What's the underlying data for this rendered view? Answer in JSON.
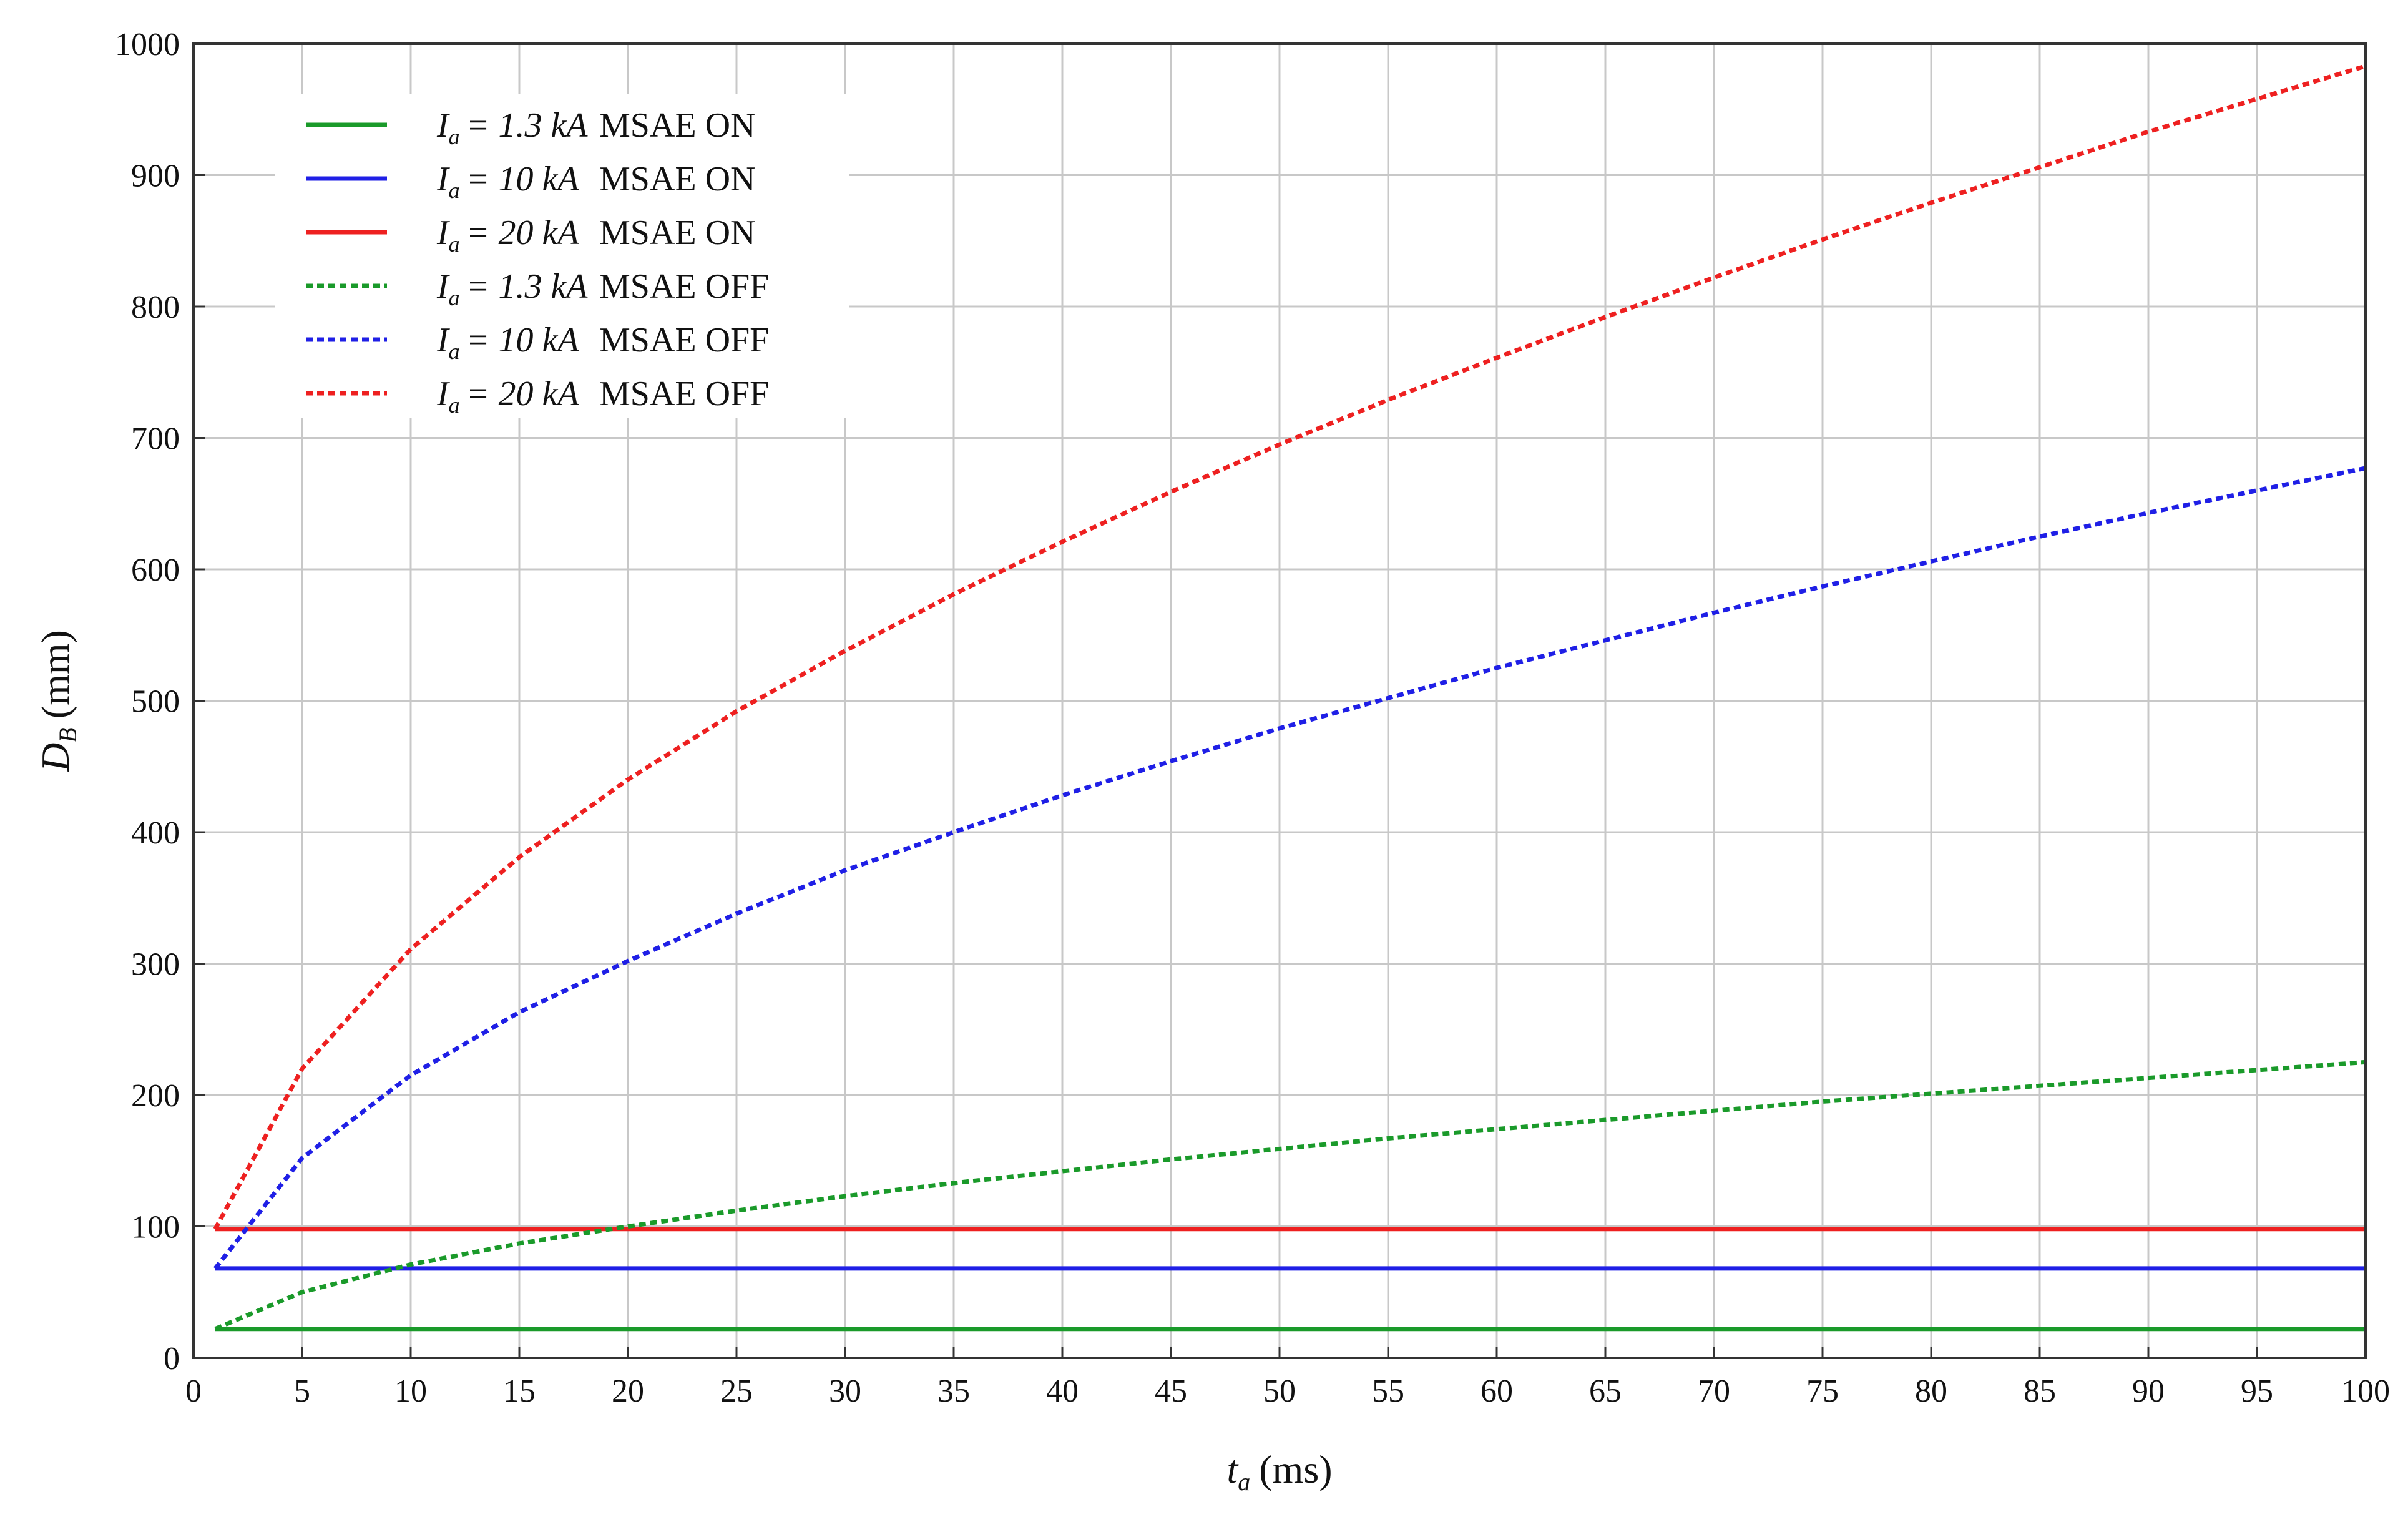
{
  "chart_data": {
    "type": "line",
    "title": "",
    "xlabel": {
      "symbol": "t",
      "subscript": "a",
      "unit": "(ms)"
    },
    "ylabel": {
      "symbol": "D",
      "subscript": "B",
      "unit": "(mm)"
    },
    "xlim": [
      0,
      100
    ],
    "ylim": [
      0,
      1000
    ],
    "xticks": [
      0,
      5,
      10,
      15,
      20,
      25,
      30,
      35,
      40,
      45,
      50,
      55,
      60,
      65,
      70,
      75,
      80,
      85,
      90,
      95,
      100
    ],
    "yticks": [
      0,
      100,
      200,
      300,
      400,
      500,
      600,
      700,
      800,
      900,
      1000
    ],
    "grid": true,
    "legend_position": "top-left",
    "series": [
      {
        "name": "Ia = 1.3 kA MSAE ON",
        "label": {
          "current": "= 1.3 kA",
          "mode": "MSAE ON"
        },
        "color": "#1a9a2a",
        "style": "solid",
        "x": [
          1,
          100
        ],
        "y": [
          22,
          22
        ]
      },
      {
        "name": "Ia = 10 kA MSAE ON",
        "label": {
          "current": "= 10 kA",
          "mode": "MSAE ON"
        },
        "color": "#1f1fe6",
        "style": "solid",
        "x": [
          1,
          100
        ],
        "y": [
          68,
          68
        ]
      },
      {
        "name": "Ia = 20 kA MSAE ON",
        "label": {
          "current": "= 20 kA",
          "mode": "MSAE ON"
        },
        "color": "#ee2020",
        "style": "solid",
        "x": [
          1,
          100
        ],
        "y": [
          98,
          98
        ]
      },
      {
        "name": "Ia = 1.3 kA MSAE OFF",
        "label": {
          "current": "= 1.3 kA",
          "mode": "MSAE OFF"
        },
        "color": "#1a9a2a",
        "style": "dotted",
        "x": [
          1,
          5,
          10,
          15,
          20,
          25,
          30,
          35,
          40,
          45,
          50,
          55,
          60,
          65,
          70,
          75,
          80,
          85,
          90,
          95,
          100
        ],
        "y": [
          22,
          50,
          71,
          87,
          100,
          112,
          123,
          133,
          142,
          151,
          159,
          167,
          174,
          181,
          188,
          195,
          201,
          207,
          213,
          219,
          225
        ]
      },
      {
        "name": "Ia = 10 kA MSAE OFF",
        "label": {
          "current": "= 10 kA",
          "mode": "MSAE OFF"
        },
        "color": "#1f1fe6",
        "style": "dotted",
        "x": [
          1,
          5,
          10,
          15,
          20,
          25,
          30,
          35,
          40,
          45,
          50,
          55,
          60,
          65,
          70,
          75,
          80,
          85,
          90,
          95,
          100
        ],
        "y": [
          68,
          152,
          215,
          263,
          302,
          338,
          371,
          400,
          428,
          454,
          479,
          502,
          525,
          546,
          567,
          587,
          606,
          625,
          643,
          660,
          677
        ]
      },
      {
        "name": "Ia = 20 kA MSAE OFF",
        "label": {
          "current": "= 20 kA",
          "mode": "MSAE OFF"
        },
        "color": "#ee2020",
        "style": "dotted",
        "x": [
          1,
          5,
          10,
          15,
          20,
          25,
          30,
          35,
          40,
          45,
          50,
          55,
          60,
          65,
          70,
          75,
          80,
          85,
          90,
          95,
          100
        ],
        "y": [
          98,
          220,
          311,
          381,
          440,
          492,
          538,
          581,
          621,
          659,
          695,
          729,
          761,
          792,
          822,
          851,
          879,
          906,
          933,
          958,
          983
        ]
      }
    ]
  }
}
